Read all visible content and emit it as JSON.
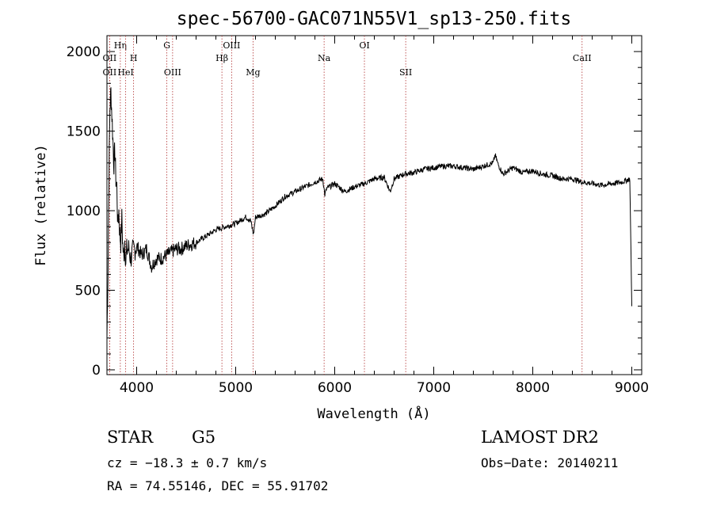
{
  "chart_data": {
    "type": "line",
    "title": "spec-56700-GAC071N55V1_sp13-250.fits",
    "xlabel": "Wavelength (Å)",
    "ylabel": "Flux (relative)",
    "xlim": [
      3700,
      9100
    ],
    "ylim": [
      -30,
      2100
    ],
    "xticks": [
      4000,
      5000,
      6000,
      7000,
      8000,
      9000
    ],
    "yticks": [
      0,
      500,
      1000,
      1500,
      2000
    ],
    "grid": false,
    "series": [
      {
        "x": [
          3700,
          3710,
          3720,
          3730,
          3740,
          3750,
          3760,
          3770,
          3780,
          3790,
          3800,
          3810,
          3820,
          3830,
          3840,
          3850,
          3860,
          3870,
          3880,
          3890,
          3900,
          3920,
          3940,
          3960,
          3980,
          4000,
          4050,
          4100,
          4150,
          4200,
          4250,
          4300,
          4350,
          4400,
          4450,
          4500,
          4600,
          4700,
          4800,
          4900,
          5000,
          5100,
          5150,
          5180,
          5200,
          5300,
          5400,
          5500,
          5600,
          5700,
          5800,
          5880,
          5900,
          5920,
          6000,
          6100,
          6200,
          6300,
          6400,
          6500,
          6560,
          6600,
          6700,
          6800,
          6900,
          7000,
          7100,
          7200,
          7300,
          7400,
          7500,
          7550,
          7600,
          7620,
          7650,
          7700,
          7800,
          7900,
          8000,
          8100,
          8200,
          8300,
          8400,
          8500,
          8600,
          8700,
          8800,
          8900,
          8980,
          9000
        ],
        "values": [
          200,
          600,
          1200,
          1650,
          1750,
          1600,
          1450,
          1300,
          1380,
          1200,
          1150,
          900,
          1000,
          850,
          800,
          950,
          780,
          700,
          820,
          680,
          750,
          760,
          700,
          740,
          760,
          780,
          720,
          760,
          650,
          700,
          700,
          720,
          740,
          760,
          760,
          780,
          800,
          840,
          880,
          900,
          920,
          960,
          940,
          850,
          960,
          980,
          1030,
          1090,
          1120,
          1150,
          1180,
          1200,
          1100,
          1140,
          1170,
          1120,
          1150,
          1170,
          1200,
          1210,
          1120,
          1200,
          1230,
          1240,
          1260,
          1270,
          1280,
          1280,
          1270,
          1260,
          1280,
          1290,
          1300,
          1350,
          1290,
          1230,
          1270,
          1240,
          1250,
          1230,
          1220,
          1200,
          1200,
          1180,
          1170,
          1160,
          1170,
          1180,
          1200,
          400
        ]
      }
    ],
    "line_markers": [
      {
        "label": "OII",
        "wavelength": 3727,
        "row": 3
      },
      {
        "label": "Hη",
        "wavelength": 3835,
        "row": 1
      },
      {
        "label": "OII",
        "wavelength": 3727,
        "row": 2
      },
      {
        "label": "HeI",
        "wavelength": 3889,
        "row": 3
      },
      {
        "label": "H",
        "wavelength": 3969,
        "row": 2
      },
      {
        "label": "G",
        "wavelength": 4305,
        "row": 1
      },
      {
        "label": "OIII",
        "wavelength": 4363,
        "row": 3
      },
      {
        "label": "Hβ",
        "wavelength": 4861,
        "row": 2
      },
      {
        "label": "OIII",
        "wavelength": 4959,
        "row": 1
      },
      {
        "label": "Mg",
        "wavelength": 5175,
        "row": 3
      },
      {
        "label": "Na",
        "wavelength": 5893,
        "row": 2
      },
      {
        "label": "OI",
        "wavelength": 6300,
        "row": 1
      },
      {
        "label": "SII",
        "wavelength": 6717,
        "row": 3
      },
      {
        "label": "CaII",
        "wavelength": 8498,
        "row": 2
      }
    ]
  },
  "info": {
    "object_class": "STAR",
    "subclass": "G5",
    "survey": "LAMOST DR2",
    "cz": "cz = −18.3 ± 0.7 km/s",
    "obs_date": "Obs−Date: 20140211",
    "coords": "RA =  74.55146, DEC =  55.91702"
  }
}
